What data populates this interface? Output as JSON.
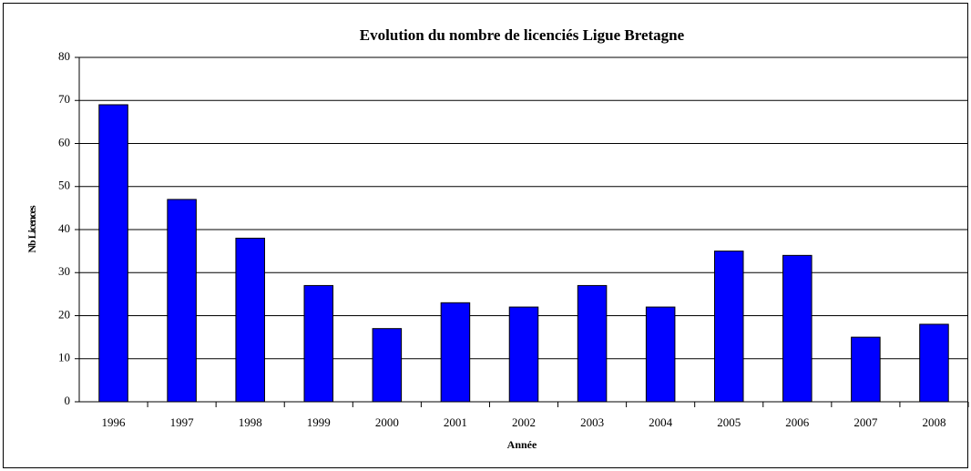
{
  "chart_data": {
    "type": "bar",
    "title": "Evolution du nombre de licenciés Ligue Bretagne",
    "x_label": "Année",
    "y_label": "Nb Licences",
    "categories": [
      "1996",
      "1997",
      "1998",
      "1999",
      "2000",
      "2001",
      "2002",
      "2003",
      "2004",
      "2005",
      "2006",
      "2007",
      "2008"
    ],
    "values": [
      69,
      47,
      38,
      27,
      17,
      23,
      22,
      27,
      22,
      35,
      34,
      15,
      18
    ],
    "color": "#0000ff",
    "ylim": [
      0,
      80
    ],
    "yticks": [
      0,
      10,
      20,
      30,
      40,
      50,
      60,
      70,
      80
    ],
    "grid": true
  }
}
